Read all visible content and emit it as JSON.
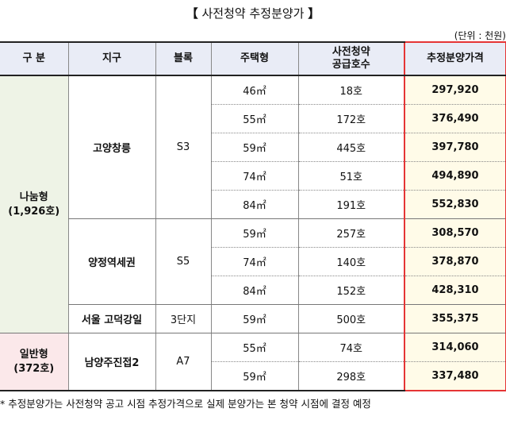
{
  "title": {
    "open": "【",
    "text": " 사전청약 추정분양가 ",
    "close": "】"
  },
  "unit": "(단위 : 천원)",
  "headers": {
    "category": "구 분",
    "district": "지구",
    "block": "블록",
    "house_type": "주택형",
    "supply_line1": "사전청약",
    "supply_line2": "공급호수",
    "price": "추정분양가격"
  },
  "groups": {
    "share": {
      "name": "나눔형",
      "total": "(1,926호)"
    },
    "general": {
      "name": "일반형",
      "total": "(372호)"
    }
  },
  "districts": {
    "goyang": {
      "name": "고양창릉",
      "block": "S3"
    },
    "yangjeong": {
      "name": "양정역세권",
      "block": "S5"
    },
    "seoul": {
      "name": "서울 고덕강일",
      "block": "3단지"
    },
    "namyang": {
      "name": "남양주진접2",
      "block": "A7"
    }
  },
  "rows": [
    {
      "type": "46㎡",
      "count": "18호",
      "price": "297,920"
    },
    {
      "type": "55㎡",
      "count": "172호",
      "price": "376,490"
    },
    {
      "type": "59㎡",
      "count": "445호",
      "price": "397,780"
    },
    {
      "type": "74㎡",
      "count": "51호",
      "price": "494,890"
    },
    {
      "type": "84㎡",
      "count": "191호",
      "price": "552,830"
    },
    {
      "type": "59㎡",
      "count": "257호",
      "price": "308,570"
    },
    {
      "type": "74㎡",
      "count": "140호",
      "price": "378,870"
    },
    {
      "type": "84㎡",
      "count": "152호",
      "price": "428,310"
    },
    {
      "type": "59㎡",
      "count": "500호",
      "price": "355,375"
    },
    {
      "type": "55㎡",
      "count": "74호",
      "price": "314,060"
    },
    {
      "type": "59㎡",
      "count": "298호",
      "price": "337,480"
    }
  ],
  "colors": {
    "header_bg": "#e9ecf6",
    "share_bg": "#eef3e6",
    "general_bg": "#fbe8ea",
    "price_bg": "#fffbe8",
    "highlight_border": "#e53535"
  },
  "note": "* 추정분양가는 사전청약 공고 시점 추정가격으로 실제 분양가는 본 청약 시점에 결정 예정"
}
